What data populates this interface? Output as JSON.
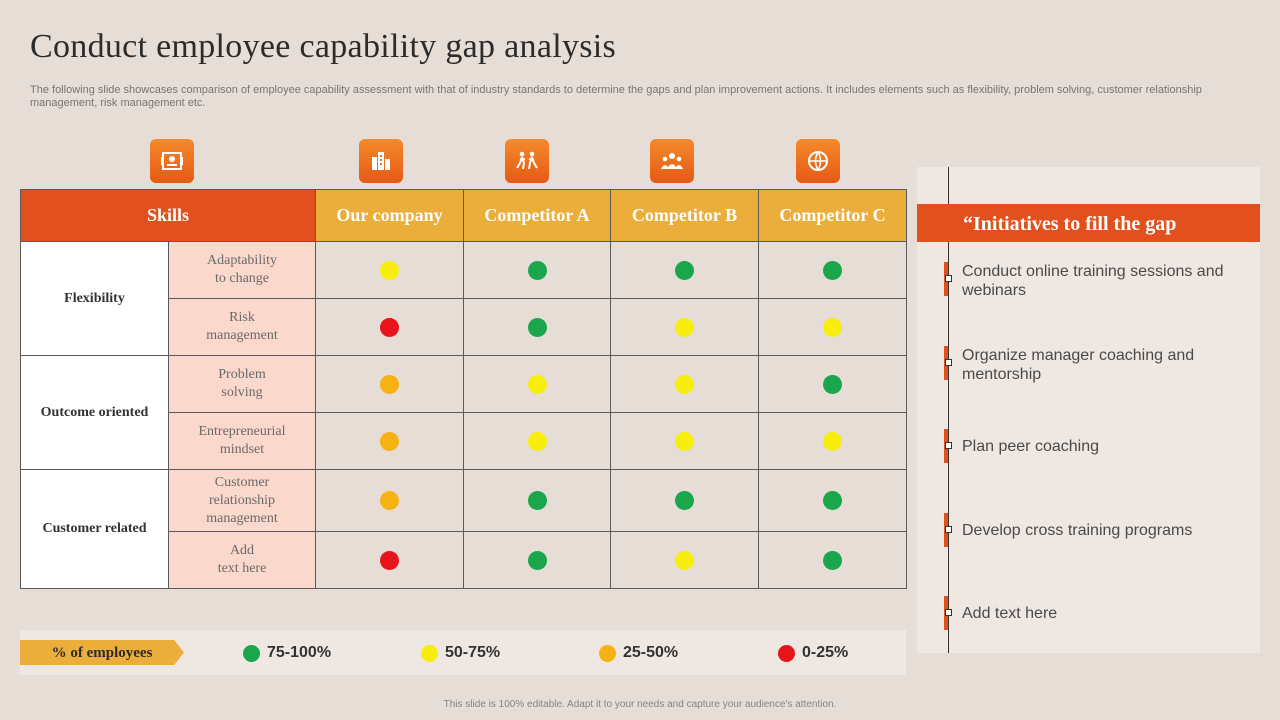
{
  "title": "Conduct employee capability gap analysis",
  "subtitle": "The following slide showcases comparison of employee capability assessment with that of industry standards to determine the gaps and plan improvement actions. It includes elements such as flexibility, problem solving, customer relationship management, risk management etc.",
  "colors": {
    "green": "#1aa64a",
    "yellow": "#f7ee0d",
    "orange": "#f6b212",
    "red": "#e8141c",
    "accent": "#e2511d",
    "gold": "#ebae3b"
  },
  "icons": [
    "id-card-icon",
    "buildings-icon",
    "people-running-icon",
    "team-icon",
    "globe-icon"
  ],
  "table": {
    "skills_header": "Skills",
    "columns": [
      "Our company",
      "Competitor A",
      "Competitor B",
      "Competitor C"
    ],
    "groups": [
      {
        "name": "Flexibility",
        "rows": [
          {
            "skill": "Adaptability\nto change",
            "ratings": [
              "yellow",
              "green",
              "green",
              "green"
            ]
          },
          {
            "skill": "Risk\nmanagement",
            "ratings": [
              "red",
              "green",
              "yellow",
              "yellow"
            ]
          }
        ]
      },
      {
        "name": "Outcome oriented",
        "rows": [
          {
            "skill": "Problem\nsolving",
            "ratings": [
              "orange",
              "yellow",
              "yellow",
              "green"
            ]
          },
          {
            "skill": "Entrepreneurial\nmindset",
            "ratings": [
              "orange",
              "yellow",
              "yellow",
              "yellow"
            ]
          }
        ]
      },
      {
        "name": "Customer related",
        "rows": [
          {
            "skill": "Customer\nrelationship\nmanagement",
            "ratings": [
              "orange",
              "green",
              "green",
              "green"
            ]
          },
          {
            "skill": "Add\ntext here",
            "ratings": [
              "red",
              "green",
              "yellow",
              "green"
            ]
          }
        ]
      }
    ]
  },
  "initiatives": {
    "header": "“Initiatives to fill the gap",
    "items": [
      "Conduct online training sessions and webinars",
      "Organize manager coaching and mentorship",
      "Plan peer coaching",
      "Develop cross training programs",
      "Add text here"
    ]
  },
  "legend": {
    "label": "% of  employees",
    "items": [
      {
        "color": "green",
        "label": "75-100%"
      },
      {
        "color": "yellow",
        "label": "50-75%"
      },
      {
        "color": "orange",
        "label": "25-50%"
      },
      {
        "color": "red",
        "label": "0-25%"
      }
    ]
  },
  "footer": "This slide is 100% editable. Adapt it to your needs and capture your audience's attention."
}
